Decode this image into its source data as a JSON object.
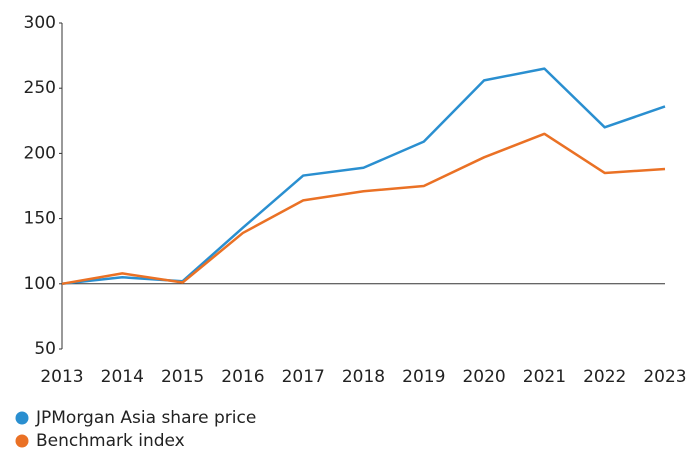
{
  "chart_data": {
    "type": "line",
    "x": [
      2013,
      2014,
      2015,
      2016,
      2017,
      2018,
      2019,
      2020,
      2021,
      2022,
      2023
    ],
    "series": [
      {
        "name": "JPMorgan Asia share price",
        "color": "#2a8fd0",
        "values": [
          100,
          105,
          102,
          143,
          183,
          189,
          209,
          256,
          265,
          220,
          236
        ]
      },
      {
        "name": "Benchmark index",
        "color": "#ea7125",
        "values": [
          100,
          108,
          101,
          139,
          164,
          171,
          175,
          197,
          215,
          185,
          188
        ]
      }
    ],
    "xlim": [
      2013,
      2023
    ],
    "xticks": [
      2013,
      2014,
      2015,
      2016,
      2017,
      2018,
      2019,
      2020,
      2021,
      2022,
      2023
    ],
    "ylim": [
      50,
      300
    ],
    "yticks": [
      50,
      100,
      150,
      200,
      250,
      300
    ],
    "reference_line": 100,
    "legend": "bottom-left"
  }
}
